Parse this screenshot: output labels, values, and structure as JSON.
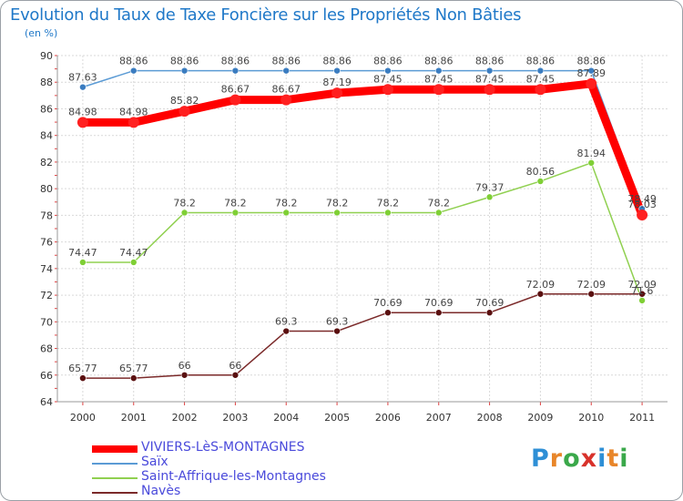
{
  "chart_data": {
    "type": "line",
    "title": "Evolution du Taux de Taxe Foncière sur les Propriétés Non Bâties",
    "ylabel": "(en %)",
    "xlabel": "",
    "ylim": [
      64,
      90
    ],
    "yticks": [
      64,
      66,
      68,
      70,
      72,
      74,
      76,
      78,
      80,
      82,
      84,
      86,
      88,
      90
    ],
    "x": [
      "2000",
      "2001",
      "2002",
      "2003",
      "2004",
      "2005",
      "2006",
      "2007",
      "2008",
      "2009",
      "2010",
      "2011"
    ],
    "grid": true,
    "legend_position": "bottom-left",
    "series": [
      {
        "name": "VIVIERS-LèS-MONTAGNES",
        "color": "#ff0000",
        "values": [
          84.98,
          84.98,
          85.82,
          86.67,
          86.67,
          87.19,
          87.45,
          87.45,
          87.45,
          87.45,
          87.89,
          78.03
        ],
        "labels": [
          "84.98",
          "84.98",
          "85.82",
          "86.67",
          "86.67",
          "87.19",
          "87.45",
          "87.45",
          "87.45",
          "87.45",
          "87.89",
          "78.03"
        ]
      },
      {
        "name": "Saïx",
        "color": "#5b9bd5",
        "values": [
          87.63,
          88.86,
          88.86,
          88.86,
          88.86,
          88.86,
          88.86,
          88.86,
          88.86,
          88.86,
          88.86,
          78.49
        ],
        "labels": [
          "87.63",
          "88.86",
          "88.86",
          "88.86",
          "88.86",
          "88.86",
          "88.86",
          "88.86",
          "88.86",
          "88.86",
          "88.86",
          "78.49"
        ]
      },
      {
        "name": "Saint-Affrique-les-Montagnes",
        "color": "#90d050",
        "values": [
          74.47,
          74.47,
          78.2,
          78.2,
          78.2,
          78.2,
          78.2,
          78.2,
          79.37,
          80.56,
          81.94,
          71.6
        ],
        "labels": [
          "74.47",
          "74.47",
          "78.2",
          "78.2",
          "78.2",
          "78.2",
          "78.2",
          "78.2",
          "79.37",
          "80.56",
          "81.94",
          "71.6"
        ]
      },
      {
        "name": "Navès",
        "color": "#7b2a2a",
        "values": [
          65.77,
          65.77,
          66,
          66,
          69.3,
          69.3,
          70.69,
          70.69,
          70.69,
          72.09,
          72.09,
          72.09
        ],
        "labels": [
          "65.77",
          "65.77",
          "66",
          "66",
          "69.3",
          "69.3",
          "70.69",
          "70.69",
          "70.69",
          "72.09",
          "72.09",
          "72.09"
        ]
      }
    ]
  },
  "branding": {
    "logo_text": "Proxiti"
  }
}
